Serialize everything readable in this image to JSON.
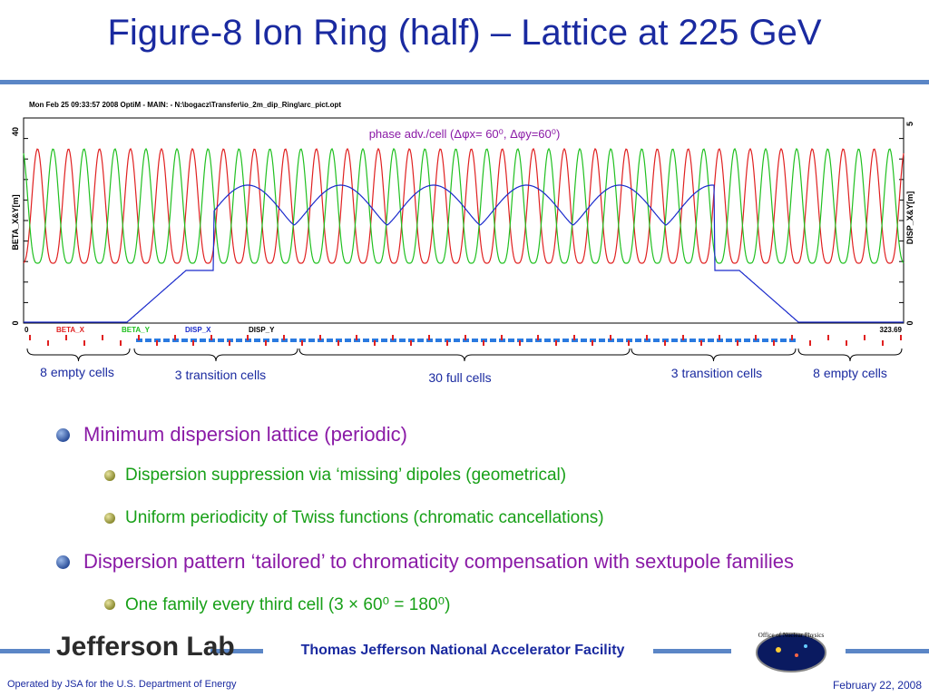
{
  "slide": {
    "title": "Figure-8 Ion Ring (half) – Lattice at 225 GeV",
    "plot_header": "Mon Feb 25 09:33:57 2008    OptiM - MAIN: - N:\\bogacz\\Transfer\\io_2m_dip_Ring\\arc_pict.opt",
    "phase_annotation": "phase adv./cell (Δφx= 60⁰, Δφy=60⁰)",
    "left_axis_label": "BETA_X&Y[m]",
    "right_axis_label": "DISP_X&Y[m]",
    "left_ticks": [
      "40",
      "0"
    ],
    "right_ticks": [
      "5",
      "0"
    ],
    "x_start": "0",
    "x_end": "323.69",
    "legend": [
      {
        "label": "BETA_X",
        "color": "#e02020"
      },
      {
        "label": "BETA_Y",
        "color": "#20c020"
      },
      {
        "label": "DISP_X",
        "color": "#1a2acc"
      },
      {
        "label": "DISP_Y",
        "color": "#000000"
      }
    ],
    "cell_groups": [
      "8 empty cells",
      "3 transition cells",
      "30 full cells",
      "3 transition cells",
      "8 empty cells"
    ],
    "bullets": [
      {
        "level": 1,
        "text": "Minimum dispersion lattice (periodic)"
      },
      {
        "level": 2,
        "text": "Dispersion suppression via ‘missing’ dipoles (geometrical)"
      },
      {
        "level": 2,
        "text": "Uniform periodicity of Twiss functions (chromatic cancellations)"
      },
      {
        "level": 1,
        "text": "Dispersion pattern ‘tailored’ to chromaticity compensation with sextupole families"
      },
      {
        "level": 2,
        "text": "One family every third cell (3 × 60⁰ = 180⁰)"
      }
    ],
    "footer": {
      "logo_text": "Jefferson Lab",
      "facility": "Thomas Jefferson National Accelerator Facility",
      "operated": "Operated by JSA for the U.S. Department of Energy",
      "date": "February 22,  2008",
      "nuc_logo_text": "Office of Nuclear Physics"
    },
    "colors": {
      "title": "#1a2aa0",
      "accent": "#5b86c6",
      "bullet1": "#8a1aa6",
      "bullet2": "#18a018"
    }
  }
}
